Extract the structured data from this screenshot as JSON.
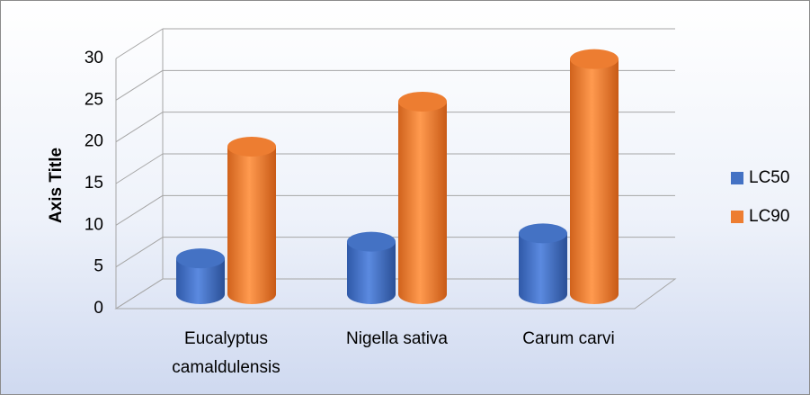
{
  "chart_data": {
    "type": "bar3d-cylinder",
    "y_axis_label": "Axis Title",
    "categories": [
      "Eucalyptus camaldulensis",
      "Nigella sativa",
      "Carum carvi"
    ],
    "series": [
      {
        "name": "LC50",
        "color": "#4472c4",
        "values": [
          4.3,
          6.3,
          7.3
        ]
      },
      {
        "name": "LC90",
        "color": "#ed7d31",
        "values": [
          17.7,
          23.1,
          28.2
        ]
      }
    ],
    "ylim": [
      0,
      30
    ],
    "yticks": [
      0,
      5,
      10,
      15,
      20,
      25,
      30
    ],
    "grid": true,
    "legend": "right"
  }
}
